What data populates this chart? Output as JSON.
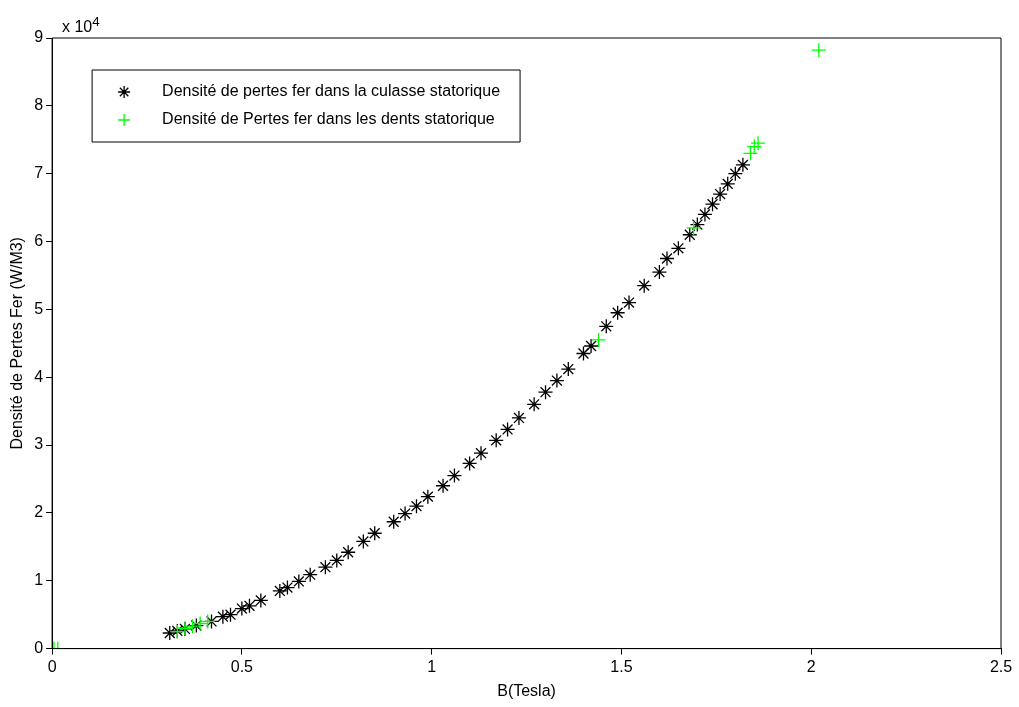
{
  "chart_data": {
    "type": "scatter",
    "xlabel": "B(Tesla)",
    "ylabel": "Densité de Pertes Fer (W/M3)",
    "annotations": [
      "x 10$^{4}$"
    ],
    "xlim": [
      0,
      2.5
    ],
    "xticks": [
      0,
      0.5,
      1,
      1.5,
      2,
      2.5
    ],
    "ylim": [
      0,
      9
    ],
    "yticks": [
      0,
      1,
      2,
      3,
      4,
      5,
      6,
      7,
      8,
      9
    ],
    "grid": false,
    "legend": "top left",
    "series": [
      {
        "name": "Densité de pertes fer dans la culasse statorique",
        "color": "#000000",
        "x": [
          0.31,
          0.33,
          0.35,
          0.38,
          0.42,
          0.45,
          0.47,
          0.5,
          0.52,
          0.55,
          0.6,
          0.62,
          0.65,
          0.68,
          0.72,
          0.75,
          0.78,
          0.82,
          0.85,
          0.9,
          0.93,
          0.96,
          0.99,
          1.03,
          1.06,
          1.1,
          1.13,
          1.17,
          1.2,
          1.23,
          1.27,
          1.3,
          1.33,
          1.36,
          1.4,
          1.42,
          1.46,
          1.49,
          1.52,
          1.56,
          1.6,
          1.62,
          1.65,
          1.68,
          1.7,
          1.72,
          1.74,
          1.76,
          1.78,
          1.8,
          1.82
        ],
        "values": [
          0.23,
          0.26,
          0.29,
          0.34,
          0.4,
          0.47,
          0.5,
          0.59,
          0.63,
          0.71,
          0.85,
          0.9,
          0.99,
          1.09,
          1.2,
          1.3,
          1.42,
          1.58,
          1.7,
          1.87,
          1.99,
          2.1,
          2.24,
          2.4,
          2.55,
          2.73,
          2.88,
          3.07,
          3.23,
          3.4,
          3.6,
          3.78,
          3.95,
          4.12,
          4.35,
          4.46,
          4.75,
          4.95,
          5.1,
          5.35,
          5.55,
          5.75,
          5.9,
          6.1,
          6.25,
          6.4,
          6.55,
          6.7,
          6.85,
          7.0,
          7.13
        ]
      },
      {
        "name": "Densité de Pertes fer dans les dents statorique",
        "color": "#00ff00",
        "marker": "cross",
        "x": [
          0.005,
          0.015,
          0.33,
          0.35,
          0.37,
          0.39,
          0.41,
          1.44,
          1.69,
          1.84,
          1.85,
          1.86,
          2.02
        ],
        "values": [
          0,
          0,
          0.25,
          0.3,
          0.33,
          0.37,
          0.4,
          4.55,
          6.2,
          7.3,
          7.4,
          7.45,
          8.82
        ]
      }
    ]
  }
}
